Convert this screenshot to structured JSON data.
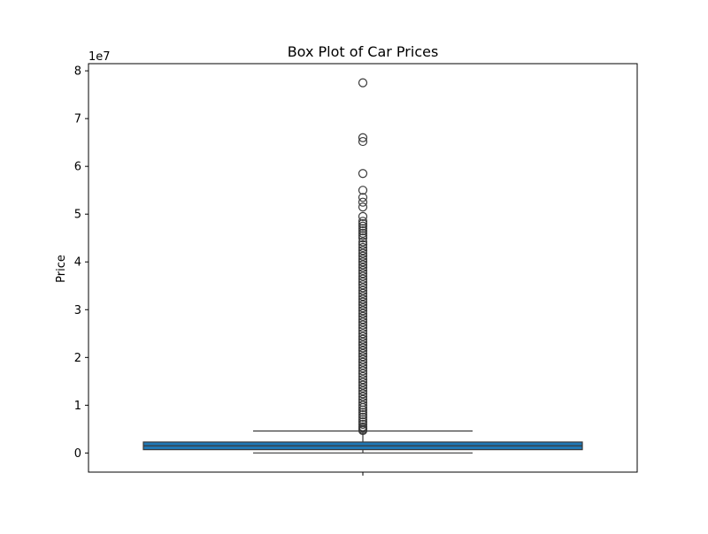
{
  "chart_data": {
    "type": "box",
    "title": "Box Plot of Car Prices",
    "xlabel": "",
    "ylabel": "Price",
    "y_offset_label": "1e7",
    "y_scale": 10000000,
    "ylim": [
      -4000000,
      81500000
    ],
    "yticks": [
      0,
      10000000,
      20000000,
      30000000,
      40000000,
      50000000,
      60000000,
      70000000,
      80000000
    ],
    "ytick_labels": [
      "0",
      "1",
      "2",
      "3",
      "4",
      "5",
      "6",
      "7",
      "8"
    ],
    "categories": [
      ""
    ],
    "box": {
      "color": "#1f77b4",
      "whisker_low": 10000,
      "q1": 700000,
      "median": 1500000,
      "q3": 2300000,
      "whisker_high": 4600000
    },
    "outliers": [
      77500000,
      66000000,
      65200000,
      58500000,
      55000000,
      53500000,
      52500000,
      51500000,
      49500000,
      48500000,
      48000000,
      47500000,
      47000000,
      46500000,
      46000000,
      45500000,
      45000000,
      44200000,
      43600000,
      43000000,
      42400000,
      41800000,
      41200000,
      40600000,
      40000000,
      39400000,
      38800000,
      38200000,
      37600000,
      37000000,
      36400000,
      35800000,
      35200000,
      34600000,
      34000000,
      33400000,
      32800000,
      32200000,
      31600000,
      31000000,
      30400000,
      29800000,
      29200000,
      28600000,
      28000000,
      27400000,
      26800000,
      26200000,
      25600000,
      25000000,
      24400000,
      23800000,
      23200000,
      22600000,
      22000000,
      21400000,
      20800000,
      20200000,
      19600000,
      19000000,
      18400000,
      17800000,
      17200000,
      16600000,
      16000000,
      15400000,
      14800000,
      14200000,
      13600000,
      13000000,
      12400000,
      11800000,
      11200000,
      10600000,
      10000000,
      9500000,
      9000000,
      8500000,
      8000000,
      7500000,
      7000000,
      6500000,
      6000000,
      5500000,
      5200000,
      4900000,
      4700000
    ],
    "grid": false,
    "legend": "none"
  }
}
